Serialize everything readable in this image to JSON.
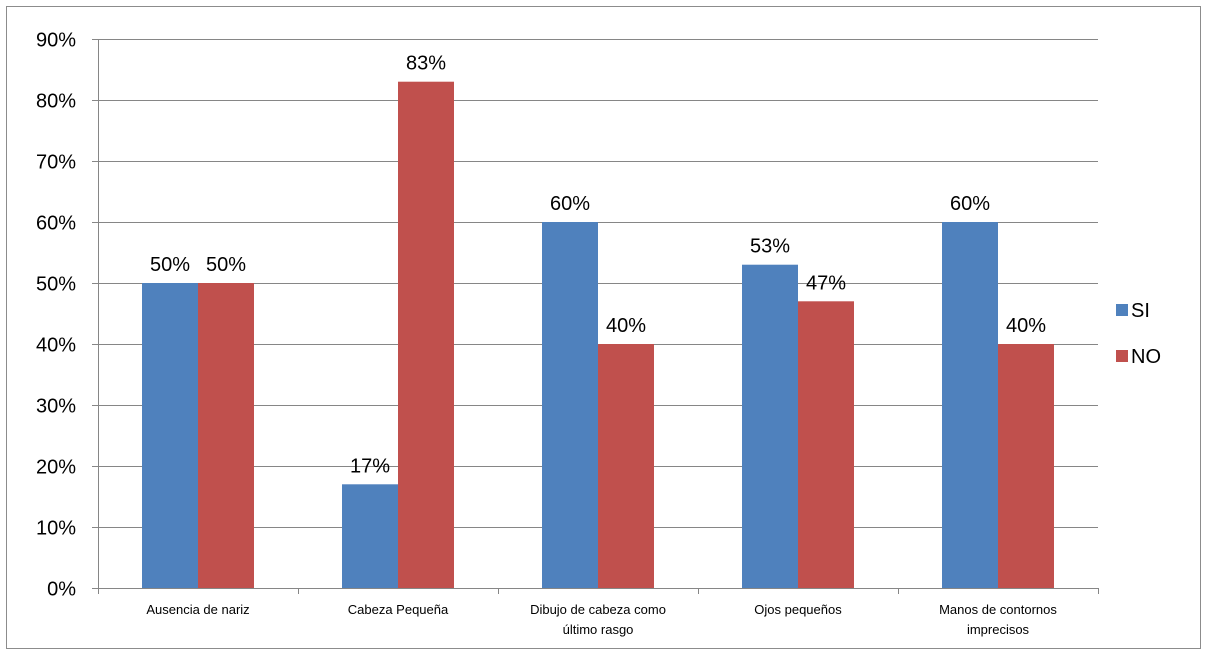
{
  "chart_data": {
    "type": "bar",
    "categories": [
      [
        "Ausencia de nariz"
      ],
      [
        "Cabeza Pequeña"
      ],
      [
        "Dibujo de cabeza como",
        "último rasgo"
      ],
      [
        "Ojos pequeños"
      ],
      [
        "Manos de contornos",
        "imprecisos"
      ]
    ],
    "series": [
      {
        "name": "SI",
        "values": [
          50,
          17,
          60,
          53,
          60
        ],
        "color": "#4f81bd"
      },
      {
        "name": "NO",
        "values": [
          50,
          83,
          40,
          47,
          40
        ],
        "color": "#c0504d"
      }
    ],
    "data_labels": [
      [
        "50%",
        "17%",
        "60%",
        "53%",
        "60%"
      ],
      [
        "50%",
        "83%",
        "40%",
        "47%",
        "40%"
      ]
    ],
    "y_ticks": [
      "0%",
      "10%",
      "20%",
      "30%",
      "40%",
      "50%",
      "60%",
      "70%",
      "80%",
      "90%"
    ],
    "ylim": [
      0,
      90
    ],
    "grid": true,
    "legend_position": "right",
    "gridline_color": "#868686",
    "frame_color": "#8c8c8c"
  }
}
